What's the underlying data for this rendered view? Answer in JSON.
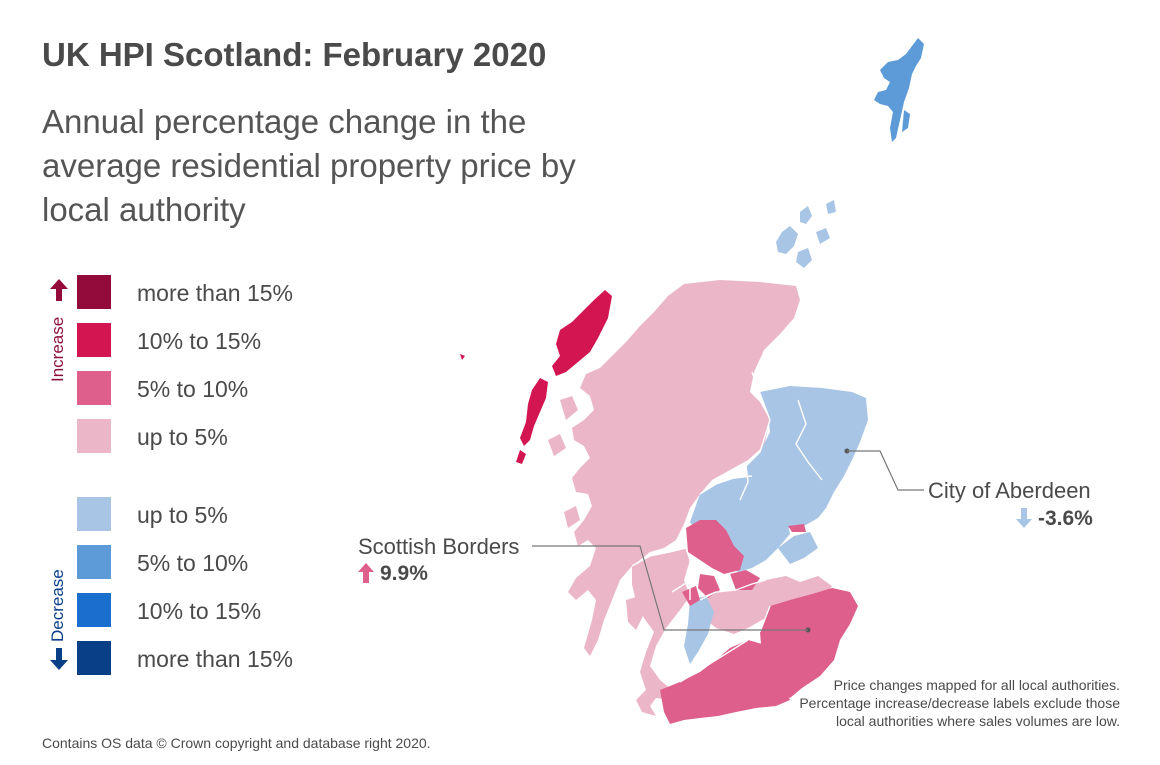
{
  "title": "UK HPI Scotland: February 2020",
  "subtitle": "Annual percentage change in the average residential property price by local authority",
  "legend": {
    "increase_label": "Increase",
    "decrease_label": "Decrease",
    "items": [
      {
        "label": "more than 15%",
        "color": "#930b3a"
      },
      {
        "label": "10% to 15%",
        "color": "#d31552"
      },
      {
        "label": "5% to 10%",
        "color": "#de5f8b"
      },
      {
        "label": "up to 5%",
        "color": "#ebb6c8"
      },
      {
        "label": "up to 5%",
        "color": "#a8c5e5"
      },
      {
        "label": "5% to 10%",
        "color": "#5c9bd8"
      },
      {
        "label": "10% to 15%",
        "color": "#1a6fce"
      },
      {
        "label": "more than 15%",
        "color": "#093f87"
      }
    ]
  },
  "callouts": {
    "aberdeen": {
      "name": "City of Aberdeen",
      "value": "-3.6%",
      "direction": "down",
      "color": "#a8c5e5"
    },
    "borders": {
      "name": "Scottish Borders",
      "value": "9.9%",
      "direction": "up",
      "color": "#de5f8b"
    }
  },
  "note": "Price changes mapped for all local authorities. Percentage increase/decrease labels exclude those local authorities where sales volumes are low.",
  "credit": "Contains OS data © Crown copyright and database right 2020."
}
